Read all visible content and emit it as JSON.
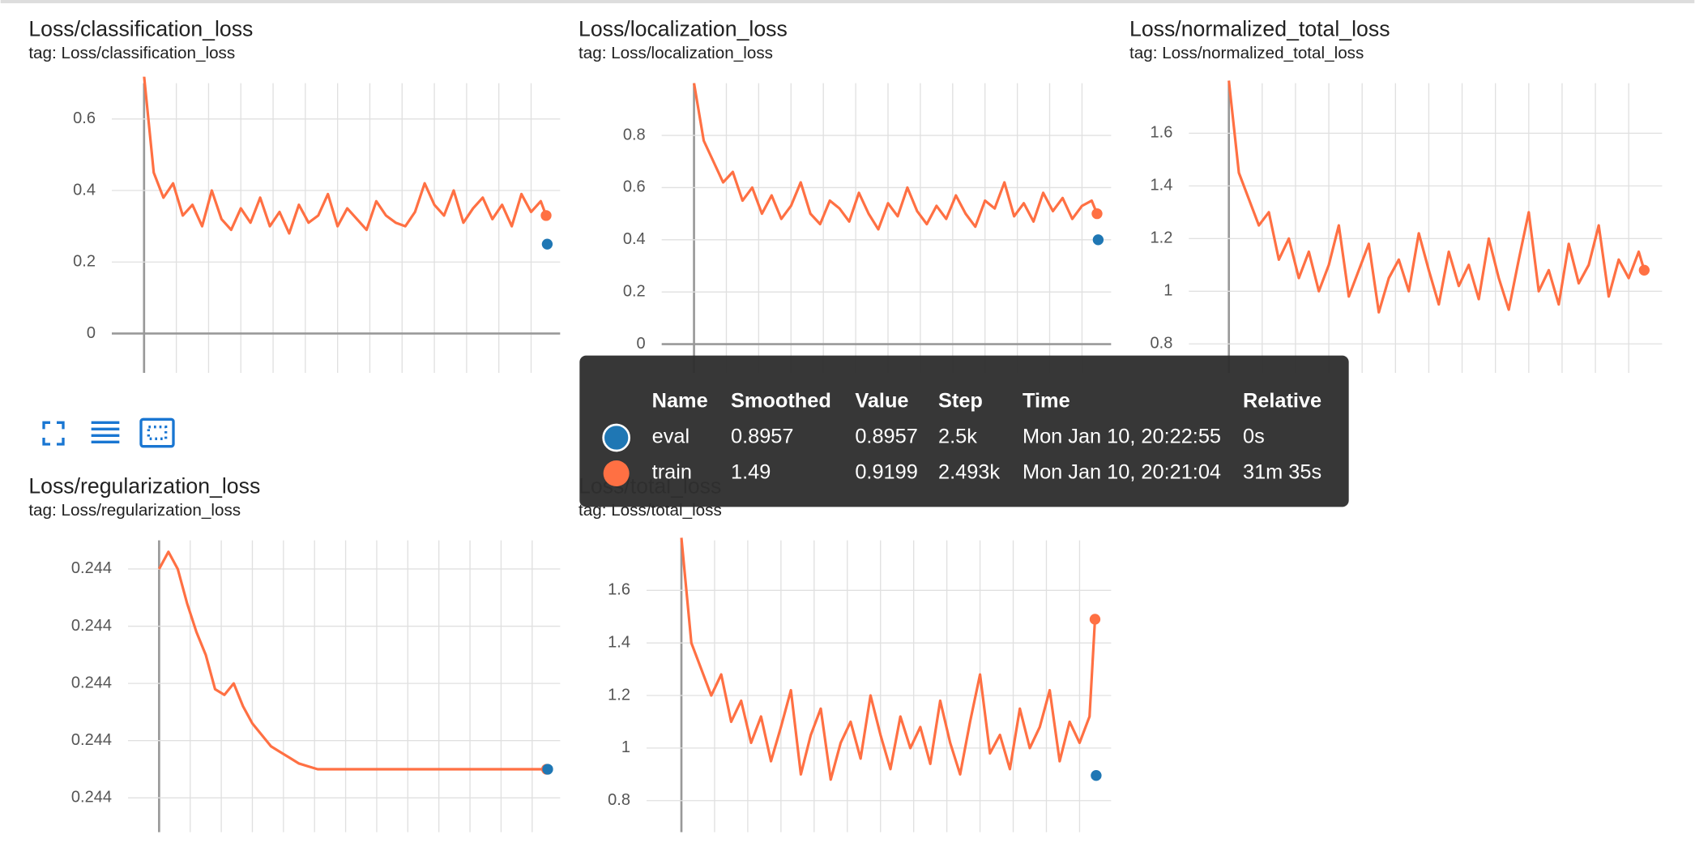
{
  "chart_data": [
    {
      "type": "line",
      "title": "Loss/classification_loss",
      "subtitle": "tag: Loss/classification_loss",
      "xlim": [
        -200,
        2580
      ],
      "ylim": [
        -0.11,
        0.7
      ],
      "xticks": [
        0,
        200,
        400,
        600,
        800,
        1000,
        1200,
        1400,
        1600,
        1800,
        2000,
        2200,
        2400
      ],
      "yticks": [
        0,
        0.2,
        0.4,
        0.6
      ],
      "series": [
        {
          "color": "#ff7043",
          "x": [
            0,
            60,
            120,
            180,
            240,
            300,
            360,
            420,
            480,
            540,
            600,
            660,
            720,
            780,
            840,
            900,
            960,
            1020,
            1080,
            1140,
            1200,
            1260,
            1320,
            1380,
            1440,
            1500,
            1560,
            1620,
            1680,
            1740,
            1800,
            1860,
            1920,
            1980,
            2040,
            2100,
            2160,
            2220,
            2280,
            2340,
            2400,
            2460,
            2493
          ],
          "values": [
            0.72,
            0.45,
            0.38,
            0.42,
            0.33,
            0.36,
            0.3,
            0.4,
            0.32,
            0.29,
            0.35,
            0.31,
            0.38,
            0.3,
            0.34,
            0.28,
            0.36,
            0.31,
            0.33,
            0.39,
            0.3,
            0.35,
            0.32,
            0.29,
            0.37,
            0.33,
            0.31,
            0.3,
            0.34,
            0.42,
            0.36,
            0.33,
            0.4,
            0.31,
            0.35,
            0.38,
            0.32,
            0.36,
            0.3,
            0.39,
            0.34,
            0.37,
            0.33
          ]
        },
        {
          "color": "#1f77b4",
          "x": [
            2500
          ],
          "values": [
            0.25
          ]
        }
      ]
    },
    {
      "type": "line",
      "title": "Loss/localization_loss",
      "subtitle": "tag: Loss/localization_loss",
      "xlim": [
        -200,
        2580
      ],
      "ylim": [
        -0.11,
        1.0
      ],
      "xticks": [
        0,
        200,
        400,
        600,
        800,
        1000,
        1200,
        1400,
        1600,
        1800,
        2000,
        2200,
        2400
      ],
      "yticks": [
        0,
        0.2,
        0.4,
        0.6,
        0.8
      ],
      "series": [
        {
          "color": "#ff7043",
          "x": [
            0,
            60,
            120,
            180,
            240,
            300,
            360,
            420,
            480,
            540,
            600,
            660,
            720,
            780,
            840,
            900,
            960,
            1020,
            1080,
            1140,
            1200,
            1260,
            1320,
            1380,
            1440,
            1500,
            1560,
            1620,
            1680,
            1740,
            1800,
            1860,
            1920,
            1980,
            2040,
            2100,
            2160,
            2220,
            2280,
            2340,
            2400,
            2460,
            2493
          ],
          "values": [
            1.0,
            0.78,
            0.7,
            0.62,
            0.66,
            0.55,
            0.6,
            0.5,
            0.57,
            0.48,
            0.53,
            0.62,
            0.5,
            0.46,
            0.55,
            0.52,
            0.47,
            0.58,
            0.5,
            0.44,
            0.54,
            0.49,
            0.6,
            0.51,
            0.46,
            0.53,
            0.48,
            0.57,
            0.5,
            0.45,
            0.55,
            0.52,
            0.62,
            0.49,
            0.54,
            0.47,
            0.58,
            0.51,
            0.56,
            0.48,
            0.53,
            0.55,
            0.5
          ]
        },
        {
          "color": "#1f77b4",
          "x": [
            2500
          ],
          "values": [
            0.4
          ]
        }
      ]
    },
    {
      "type": "line",
      "title": "Loss/normalized_total_loss",
      "subtitle": "tag: Loss/normalized_total_loss",
      "xlim": [
        -240,
        2600
      ],
      "ylim": [
        0.69,
        1.79
      ],
      "xticks": [
        0,
        200,
        400,
        600,
        800,
        1000,
        1200,
        1400,
        1600,
        1800,
        2000,
        2200,
        2400
      ],
      "yticks": [
        0.8,
        1,
        1.2,
        1.4,
        1.6
      ],
      "series": [
        {
          "color": "#ff7043",
          "x": [
            0,
            60,
            120,
            180,
            240,
            300,
            360,
            420,
            480,
            540,
            600,
            660,
            720,
            780,
            840,
            900,
            960,
            1020,
            1080,
            1140,
            1200,
            1260,
            1320,
            1380,
            1440,
            1500,
            1560,
            1620,
            1680,
            1740,
            1800,
            1860,
            1920,
            1980,
            2040,
            2100,
            2160,
            2220,
            2280,
            2340,
            2400,
            2460,
            2493
          ],
          "values": [
            1.8,
            1.45,
            1.35,
            1.25,
            1.3,
            1.12,
            1.2,
            1.05,
            1.15,
            1.0,
            1.1,
            1.25,
            0.98,
            1.08,
            1.18,
            0.92,
            1.05,
            1.12,
            1.0,
            1.22,
            1.08,
            0.95,
            1.15,
            1.02,
            1.1,
            0.97,
            1.2,
            1.05,
            0.93,
            1.12,
            1.3,
            1.0,
            1.08,
            0.95,
            1.18,
            1.03,
            1.1,
            1.25,
            0.98,
            1.12,
            1.05,
            1.15,
            1.08
          ]
        }
      ]
    },
    {
      "type": "line",
      "title": "Loss/regularization_loss",
      "subtitle": "tag: Loss/regularization_loss",
      "xlim": [
        -200,
        2580
      ],
      "ylim": [
        0.24394,
        0.24445
      ],
      "xticks": [
        0,
        200,
        400,
        600,
        800,
        1000,
        1200,
        1400,
        1600,
        1800,
        2000,
        2200,
        2400
      ],
      "yticks": [
        {
          "value": 0.244,
          "label": "0.244"
        },
        {
          "value": 0.2441,
          "label": "0.244"
        },
        {
          "value": 0.2442,
          "label": "0.244"
        },
        {
          "value": 0.2443,
          "label": "0.244"
        },
        {
          "value": 0.2444,
          "label": "0.244"
        }
      ],
      "series": [
        {
          "color": "#ff7043",
          "x": [
            0,
            60,
            120,
            180,
            240,
            300,
            360,
            420,
            480,
            540,
            600,
            660,
            720,
            780,
            840,
            900,
            960,
            1020,
            1080,
            1140,
            1200,
            1260,
            1320,
            1380,
            1440,
            1500,
            1560,
            1620,
            1680,
            1740,
            1800,
            1860,
            1920,
            1980,
            2040,
            2100,
            2160,
            2220,
            2280,
            2340,
            2400,
            2460,
            2493
          ],
          "values": [
            0.2444,
            0.24443,
            0.2444,
            0.24434,
            0.24429,
            0.24425,
            0.24419,
            0.24418,
            0.2442,
            0.24416,
            0.24413,
            0.24411,
            0.24409,
            0.24408,
            0.24407,
            0.24406,
            0.244055,
            0.24405,
            0.24405,
            0.24405,
            0.24405,
            0.24405,
            0.24405,
            0.24405,
            0.24405,
            0.24405,
            0.24405,
            0.24405,
            0.24405,
            0.24405,
            0.24405,
            0.24405,
            0.24405,
            0.24405,
            0.24405,
            0.24405,
            0.24405,
            0.24405,
            0.24405,
            0.24405,
            0.24405,
            0.24405,
            0.24405
          ]
        },
        {
          "color": "#1f77b4",
          "x": [
            2500
          ],
          "values": [
            0.24405
          ]
        }
      ]
    },
    {
      "type": "line",
      "title": "Loss/total_loss",
      "subtitle": "tag: Loss/total_loss",
      "xlim": [
        -210,
        2590
      ],
      "ylim": [
        0.68,
        1.79
      ],
      "xticks": [
        0,
        200,
        400,
        600,
        800,
        1000,
        1200,
        1400,
        1600,
        1800,
        2000,
        2200,
        2400
      ],
      "yticks": [
        0.8,
        1,
        1.2,
        1.4,
        1.6
      ],
      "series": [
        {
          "color": "#ff7043",
          "x": [
            0,
            60,
            120,
            180,
            240,
            300,
            360,
            420,
            480,
            540,
            600,
            660,
            720,
            780,
            840,
            900,
            960,
            1020,
            1080,
            1140,
            1200,
            1260,
            1320,
            1380,
            1440,
            1500,
            1560,
            1620,
            1680,
            1740,
            1800,
            1860,
            1920,
            1980,
            2040,
            2100,
            2160,
            2220,
            2280,
            2340,
            2400,
            2460,
            2493
          ],
          "values": [
            1.8,
            1.4,
            1.3,
            1.2,
            1.28,
            1.1,
            1.18,
            1.02,
            1.12,
            0.95,
            1.08,
            1.22,
            0.9,
            1.05,
            1.15,
            0.88,
            1.02,
            1.1,
            0.96,
            1.2,
            1.05,
            0.92,
            1.12,
            1.0,
            1.08,
            0.94,
            1.18,
            1.02,
            0.9,
            1.1,
            1.28,
            0.98,
            1.05,
            0.92,
            1.15,
            1.0,
            1.08,
            1.22,
            0.95,
            1.1,
            1.02,
            1.12,
            1.49
          ]
        },
        {
          "color": "#1f77b4",
          "x": [
            2500
          ],
          "values": [
            0.8957
          ]
        }
      ]
    }
  ],
  "tooltip": {
    "columns": [
      "Name",
      "Smoothed",
      "Value",
      "Step",
      "Time",
      "Relative"
    ],
    "rows": [
      {
        "color": "#1f77b4",
        "cells": [
          "eval",
          "0.8957",
          "0.8957",
          "2.5k",
          "Mon Jan 10, 20:22:55",
          "0s"
        ]
      },
      {
        "color": "#ff7043",
        "cells": [
          "train",
          "1.49",
          "0.9199",
          "2.493k",
          "Mon Jan 10, 20:21:04",
          "31m 35s"
        ]
      }
    ]
  }
}
